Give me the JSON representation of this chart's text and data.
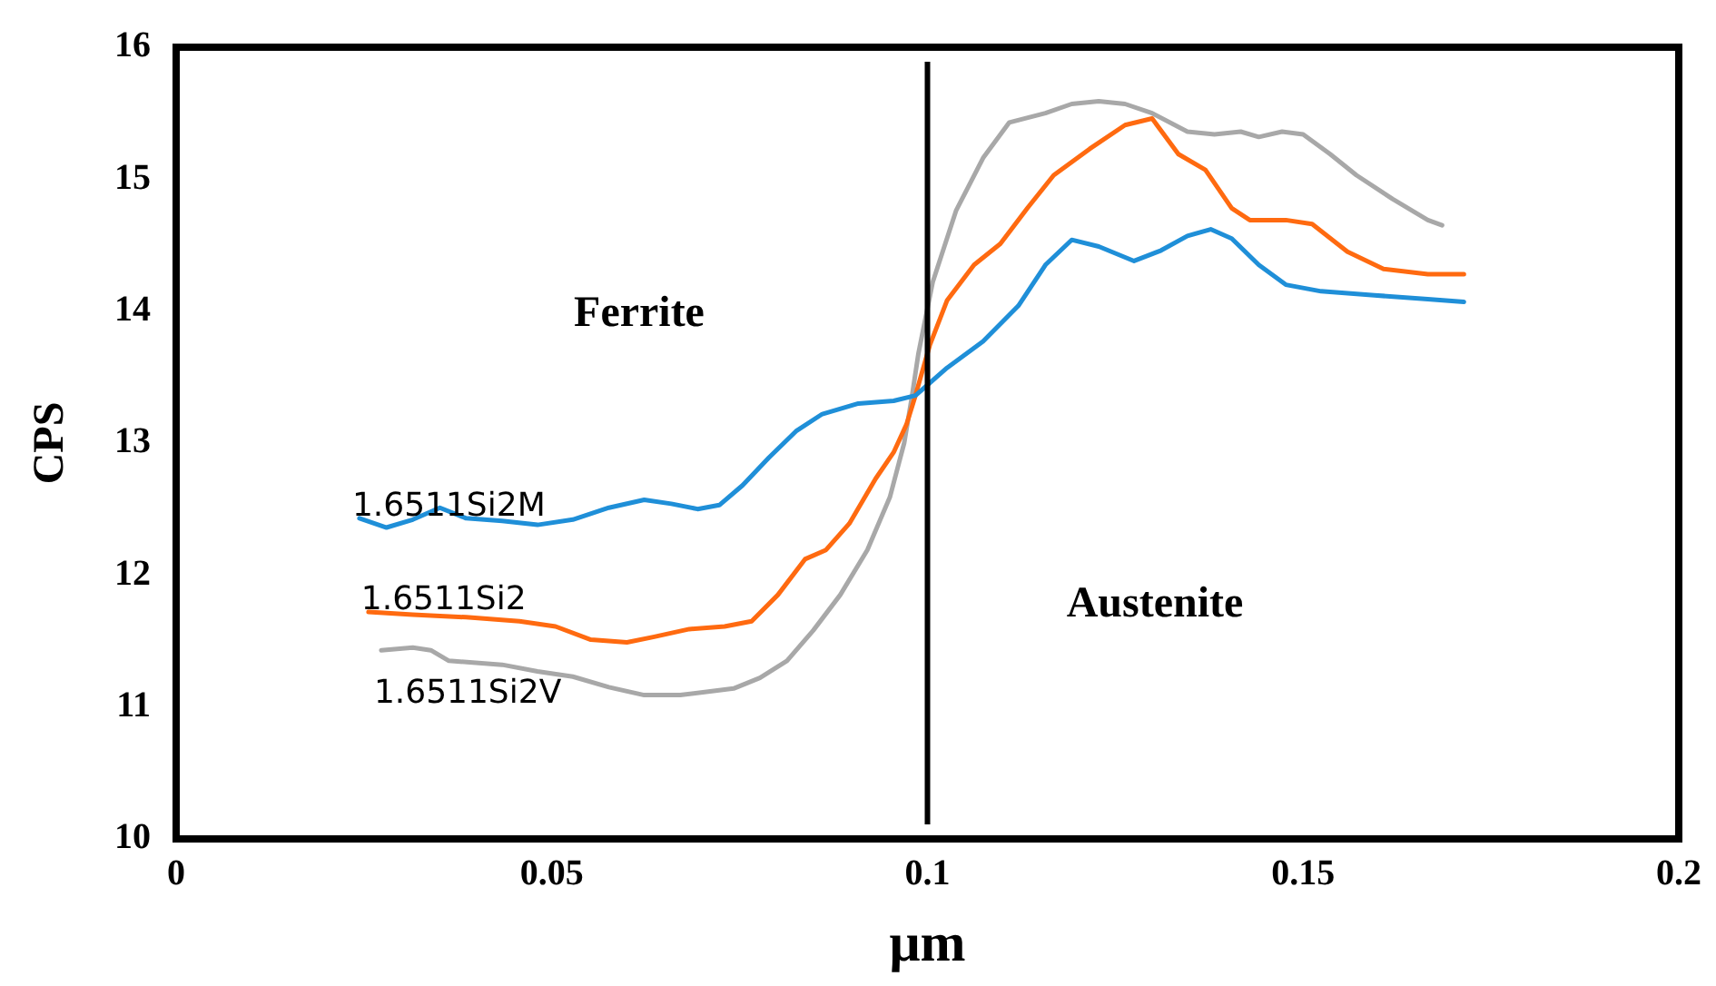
{
  "chart_data": {
    "type": "line",
    "xlabel": "μm",
    "ylabel": "CPS",
    "xlim": [
      0,
      0.2
    ],
    "xticks": [
      0,
      0.05,
      0.1,
      0.15,
      0.2
    ],
    "ylim": [
      10,
      16
    ],
    "yticks": [
      10,
      11,
      12,
      13,
      14,
      15,
      16
    ],
    "grid": false,
    "legend": false,
    "marker": "none",
    "line_style": "solid",
    "ref_lines": [
      {
        "axis": "x",
        "value": 0.1,
        "color": "#000000"
      }
    ],
    "annotations": [
      "Ferrite",
      "Austenite"
    ],
    "series": [
      {
        "name": "1.6511Si2M",
        "color": "#1f8fd8",
        "x": [
          0.0244,
          0.028,
          0.0315,
          0.0351,
          0.0386,
          0.0434,
          0.0481,
          0.0528,
          0.0576,
          0.0623,
          0.0659,
          0.0694,
          0.0723,
          0.0754,
          0.0789,
          0.0825,
          0.086,
          0.0908,
          0.0955,
          0.0984,
          0.1026,
          0.1074,
          0.1121,
          0.1157,
          0.1192,
          0.1228,
          0.1275,
          0.1311,
          0.1346,
          0.1377,
          0.1405,
          0.1441,
          0.1477,
          0.1524,
          0.1595,
          0.1666,
          0.1714
        ],
        "values": [
          12.43,
          12.36,
          12.42,
          12.51,
          12.43,
          12.41,
          12.38,
          12.42,
          12.51,
          12.57,
          12.54,
          12.5,
          12.53,
          12.68,
          12.89,
          13.09,
          13.22,
          13.3,
          13.32,
          13.36,
          13.57,
          13.77,
          14.04,
          14.35,
          14.54,
          14.49,
          14.38,
          14.46,
          14.57,
          14.62,
          14.55,
          14.35,
          14.2,
          14.15,
          14.12,
          14.09,
          14.07
        ]
      },
      {
        "name": "1.6511Si2",
        "color": "#ff6a10",
        "x": [
          0.0256,
          0.0315,
          0.0386,
          0.0457,
          0.0505,
          0.0552,
          0.06,
          0.0635,
          0.0683,
          0.073,
          0.0766,
          0.0801,
          0.0837,
          0.0865,
          0.0896,
          0.0931,
          0.0955,
          0.0972,
          0.0984,
          0.1003,
          0.1026,
          0.1062,
          0.1097,
          0.1133,
          0.1168,
          0.1216,
          0.1263,
          0.1299,
          0.1334,
          0.137,
          0.1405,
          0.1429,
          0.1477,
          0.1512,
          0.1559,
          0.1607,
          0.1666,
          0.1714
        ],
        "values": [
          11.72,
          11.7,
          11.68,
          11.65,
          11.61,
          11.51,
          11.49,
          11.53,
          11.59,
          11.61,
          11.65,
          11.85,
          12.12,
          12.19,
          12.39,
          12.73,
          12.93,
          13.14,
          13.36,
          13.74,
          14.08,
          14.35,
          14.51,
          14.78,
          15.03,
          15.23,
          15.41,
          15.46,
          15.19,
          15.07,
          14.78,
          14.69,
          14.69,
          14.66,
          14.45,
          14.32,
          14.28,
          14.28
        ]
      },
      {
        "name": "1.6511Si2V",
        "color": "#a8a8a8",
        "x": [
          0.0273,
          0.0315,
          0.0339,
          0.0363,
          0.0434,
          0.0481,
          0.0528,
          0.0576,
          0.0623,
          0.0671,
          0.0742,
          0.0777,
          0.0813,
          0.0848,
          0.0884,
          0.092,
          0.095,
          0.0969,
          0.0979,
          0.0988,
          0.1007,
          0.1038,
          0.1074,
          0.1109,
          0.1157,
          0.1192,
          0.1228,
          0.1263,
          0.1299,
          0.1346,
          0.1382,
          0.1417,
          0.1441,
          0.1472,
          0.15,
          0.1536,
          0.1571,
          0.1619,
          0.1666,
          0.1685
        ],
        "values": [
          11.43,
          11.45,
          11.43,
          11.35,
          11.32,
          11.27,
          11.23,
          11.15,
          11.09,
          11.09,
          11.14,
          11.22,
          11.35,
          11.58,
          11.85,
          12.19,
          12.59,
          13.0,
          13.34,
          13.68,
          14.22,
          14.76,
          15.16,
          15.43,
          15.5,
          15.57,
          15.59,
          15.57,
          15.5,
          15.36,
          15.34,
          15.36,
          15.32,
          15.36,
          15.34,
          15.19,
          15.03,
          14.85,
          14.69,
          14.65
        ]
      }
    ]
  }
}
